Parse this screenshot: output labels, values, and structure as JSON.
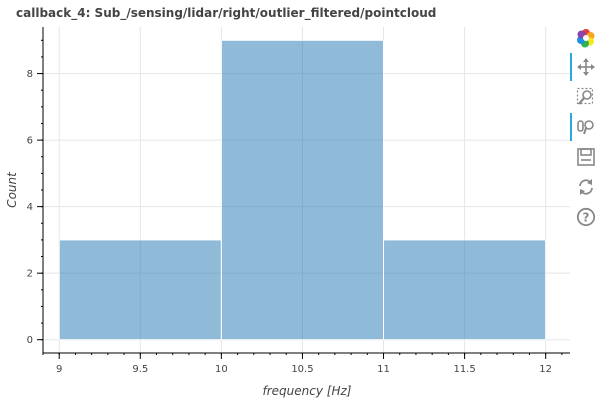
{
  "toolbar": {
    "tools": [
      {
        "name": "bokeh-logo-icon",
        "active": false
      },
      {
        "name": "pan-icon",
        "active": true
      },
      {
        "name": "box-zoom-icon",
        "active": false
      },
      {
        "name": "wheel-zoom-icon",
        "active": true
      },
      {
        "name": "save-icon",
        "active": false
      },
      {
        "name": "reset-icon",
        "active": false
      },
      {
        "name": "help-icon",
        "active": false
      }
    ]
  },
  "chart_data": {
    "type": "bar",
    "title": "callback_4: Sub_/sensing/lidar/right/outlier_filtered/pointcloud",
    "xlabel": "frequency [Hz]",
    "ylabel": "Count",
    "bins": [
      {
        "left": 9,
        "right": 10,
        "count": 3
      },
      {
        "left": 10,
        "right": 11,
        "count": 9
      },
      {
        "left": 11,
        "right": 12,
        "count": 3
      }
    ],
    "xlim": [
      8.9,
      12.15
    ],
    "ylim": [
      -0.4,
      9.4
    ],
    "x_ticks": [
      "9",
      "9.5",
      "10",
      "10.5",
      "11",
      "11.5",
      "12"
    ],
    "x_tick_values": [
      9,
      9.5,
      10,
      10.5,
      11,
      11.5,
      12
    ],
    "y_ticks": [
      "0",
      "2",
      "4",
      "6",
      "8"
    ],
    "y_tick_values": [
      0,
      2,
      4,
      6,
      8
    ],
    "bar_color": "#1f77b4",
    "grid": true
  }
}
